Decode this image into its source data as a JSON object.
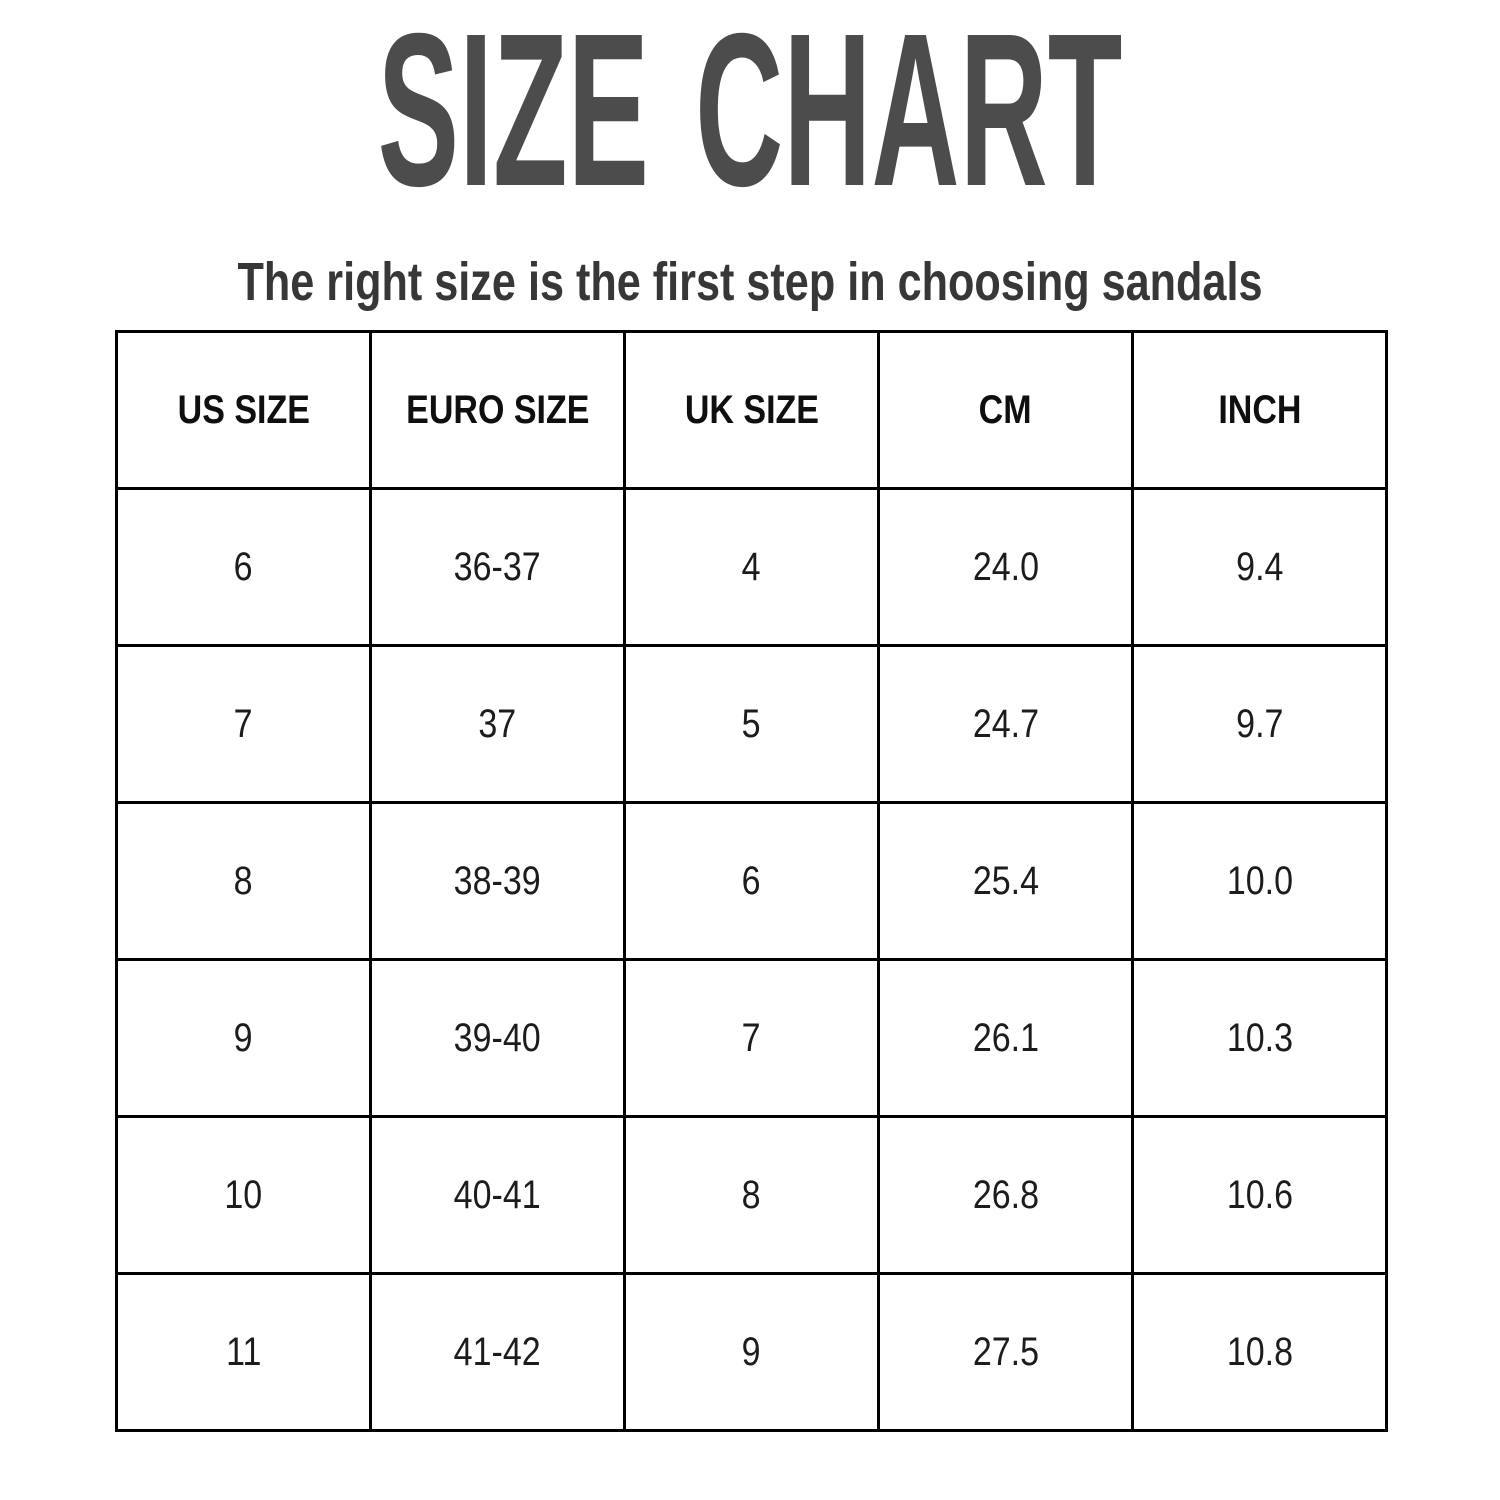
{
  "page": {
    "title": "SIZE CHART",
    "subtitle": "The right size is the first step in choosing sandals"
  },
  "colors": {
    "background": "#ffffff",
    "title_color": "#4c4c4c",
    "subtitle_color": "#373737",
    "border_color": "#000000",
    "header_text_color": "#0f0f0f",
    "cell_text_color": "#1c1c1c"
  },
  "table": {
    "headers": [
      "US SIZE",
      "EURO SIZE",
      "UK SIZE",
      "CM",
      "INCH"
    ],
    "rows": [
      [
        "6",
        "36-37",
        "4",
        "24.0",
        "9.4"
      ],
      [
        "7",
        "37",
        "5",
        "24.7",
        "9.7"
      ],
      [
        "8",
        "38-39",
        "6",
        "25.4",
        "10.0"
      ],
      [
        "9",
        "39-40",
        "7",
        "26.1",
        "10.3"
      ],
      [
        "10",
        "40-41",
        "8",
        "26.8",
        "10.6"
      ],
      [
        "11",
        "41-42",
        "9",
        "27.5",
        "10.8"
      ]
    ]
  },
  "chart_data": {
    "type": "table",
    "title": "SIZE CHART",
    "subtitle": "The right size is the first step in choosing sandals",
    "columns": [
      "US SIZE",
      "EURO SIZE",
      "UK SIZE",
      "CM",
      "INCH"
    ],
    "rows": [
      [
        "6",
        "36-37",
        "4",
        "24.0",
        "9.4"
      ],
      [
        "7",
        "37",
        "5",
        "24.7",
        "9.7"
      ],
      [
        "8",
        "38-39",
        "6",
        "25.4",
        "10.0"
      ],
      [
        "9",
        "39-40",
        "7",
        "26.1",
        "10.3"
      ],
      [
        "10",
        "40-41",
        "8",
        "26.8",
        "10.6"
      ],
      [
        "11",
        "41-42",
        "9",
        "27.5",
        "10.8"
      ]
    ]
  }
}
